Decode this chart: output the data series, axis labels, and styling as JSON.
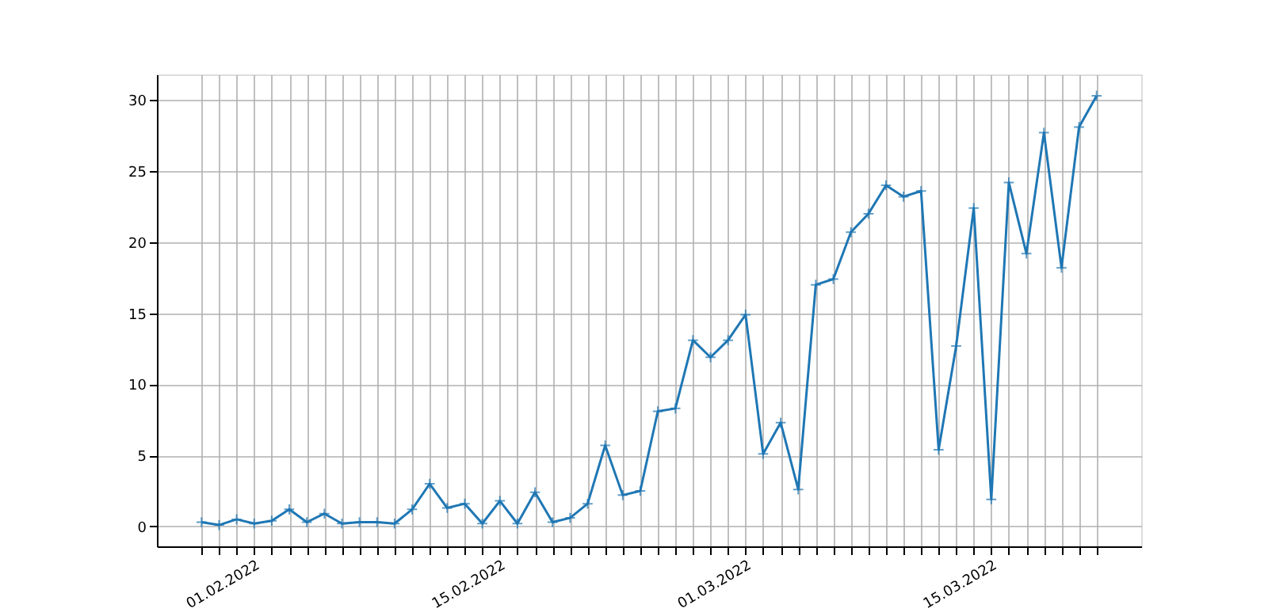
{
  "chart_data": {
    "type": "line",
    "x": [
      "2022-01-29",
      "2022-01-30",
      "2022-01-31",
      "2022-02-01",
      "2022-02-02",
      "2022-02-03",
      "2022-02-04",
      "2022-02-05",
      "2022-02-06",
      "2022-02-07",
      "2022-02-08",
      "2022-02-09",
      "2022-02-10",
      "2022-02-11",
      "2022-02-12",
      "2022-02-13",
      "2022-02-14",
      "2022-02-15",
      "2022-02-16",
      "2022-02-17",
      "2022-02-18",
      "2022-02-19",
      "2022-02-20",
      "2022-02-21",
      "2022-02-22",
      "2022-02-23",
      "2022-02-24",
      "2022-02-25",
      "2022-02-26",
      "2022-02-27",
      "2022-02-28",
      "2022-03-01",
      "2022-03-02",
      "2022-03-03",
      "2022-03-04",
      "2022-03-05",
      "2022-03-06",
      "2022-03-07",
      "2022-03-08",
      "2022-03-09",
      "2022-03-10",
      "2022-03-11",
      "2022-03-12",
      "2022-03-13",
      "2022-03-14",
      "2022-03-15",
      "2022-03-16",
      "2022-03-17",
      "2022-03-18",
      "2022-03-19",
      "2022-03-20",
      "2022-03-21"
    ],
    "series": [
      {
        "color": "#1f77b4",
        "values": [
          0.3,
          0.1,
          0.5,
          0.2,
          0.4,
          1.2,
          0.3,
          0.9,
          0.2,
          0.3,
          0.3,
          0.2,
          1.2,
          3.0,
          1.3,
          1.6,
          0.2,
          1.8,
          0.2,
          2.4,
          0.3,
          0.6,
          1.6,
          5.7,
          2.2,
          2.5,
          8.1,
          8.3,
          13.1,
          11.9,
          13.1,
          14.9,
          5.1,
          7.3,
          2.6,
          17.0,
          17.4,
          20.7,
          22.0,
          24.0,
          23.2,
          23.6,
          5.4,
          12.7,
          22.4,
          1.9,
          24.2,
          19.2,
          27.7,
          18.2,
          28.1,
          30.3
        ]
      }
    ],
    "xlim": [
      "2022-01-26T11:00",
      "2022-03-23T13:00"
    ],
    "xticks": [
      {
        "value": "2022-01-29",
        "label": null
      },
      {
        "value": "2022-01-30",
        "label": null
      },
      {
        "value": "2022-01-31",
        "label": null
      },
      {
        "value": "2022-02-01",
        "label": "01.02.2022"
      },
      {
        "value": "2022-02-02",
        "label": null
      },
      {
        "value": "2022-02-03",
        "label": null
      },
      {
        "value": "2022-02-04",
        "label": null
      },
      {
        "value": "2022-02-05",
        "label": null
      },
      {
        "value": "2022-02-06",
        "label": null
      },
      {
        "value": "2022-02-07",
        "label": null
      },
      {
        "value": "2022-02-08",
        "label": null
      },
      {
        "value": "2022-02-09",
        "label": null
      },
      {
        "value": "2022-02-10",
        "label": null
      },
      {
        "value": "2022-02-11",
        "label": null
      },
      {
        "value": "2022-02-12",
        "label": null
      },
      {
        "value": "2022-02-13",
        "label": null
      },
      {
        "value": "2022-02-14",
        "label": null
      },
      {
        "value": "2022-02-15",
        "label": "15.02.2022"
      },
      {
        "value": "2022-02-16",
        "label": null
      },
      {
        "value": "2022-02-17",
        "label": null
      },
      {
        "value": "2022-02-18",
        "label": null
      },
      {
        "value": "2022-02-19",
        "label": null
      },
      {
        "value": "2022-02-20",
        "label": null
      },
      {
        "value": "2022-02-21",
        "label": null
      },
      {
        "value": "2022-02-22",
        "label": null
      },
      {
        "value": "2022-02-23",
        "label": null
      },
      {
        "value": "2022-02-24",
        "label": null
      },
      {
        "value": "2022-02-25",
        "label": null
      },
      {
        "value": "2022-02-26",
        "label": null
      },
      {
        "value": "2022-02-27",
        "label": null
      },
      {
        "value": "2022-02-28",
        "label": null
      },
      {
        "value": "2022-03-01",
        "label": "01.03.2022"
      },
      {
        "value": "2022-03-02",
        "label": null
      },
      {
        "value": "2022-03-03",
        "label": null
      },
      {
        "value": "2022-03-04",
        "label": null
      },
      {
        "value": "2022-03-05",
        "label": null
      },
      {
        "value": "2022-03-06",
        "label": null
      },
      {
        "value": "2022-03-07",
        "label": null
      },
      {
        "value": "2022-03-08",
        "label": null
      },
      {
        "value": "2022-03-09",
        "label": null
      },
      {
        "value": "2022-03-10",
        "label": null
      },
      {
        "value": "2022-03-11",
        "label": null
      },
      {
        "value": "2022-03-12",
        "label": null
      },
      {
        "value": "2022-03-13",
        "label": null
      },
      {
        "value": "2022-03-14",
        "label": null
      },
      {
        "value": "2022-03-15",
        "label": "15.03.2022"
      },
      {
        "value": "2022-03-16",
        "label": null
      },
      {
        "value": "2022-03-17",
        "label": null
      },
      {
        "value": "2022-03-18",
        "label": null
      },
      {
        "value": "2022-03-19",
        "label": null
      },
      {
        "value": "2022-03-20",
        "label": null
      },
      {
        "value": "2022-03-21",
        "label": null
      }
    ],
    "ylim": [
      -1.4,
      31.8
    ],
    "yticks": [
      0,
      5,
      10,
      15,
      20,
      25,
      30
    ],
    "grid": true,
    "marker": "cross",
    "line_style": "solid"
  }
}
